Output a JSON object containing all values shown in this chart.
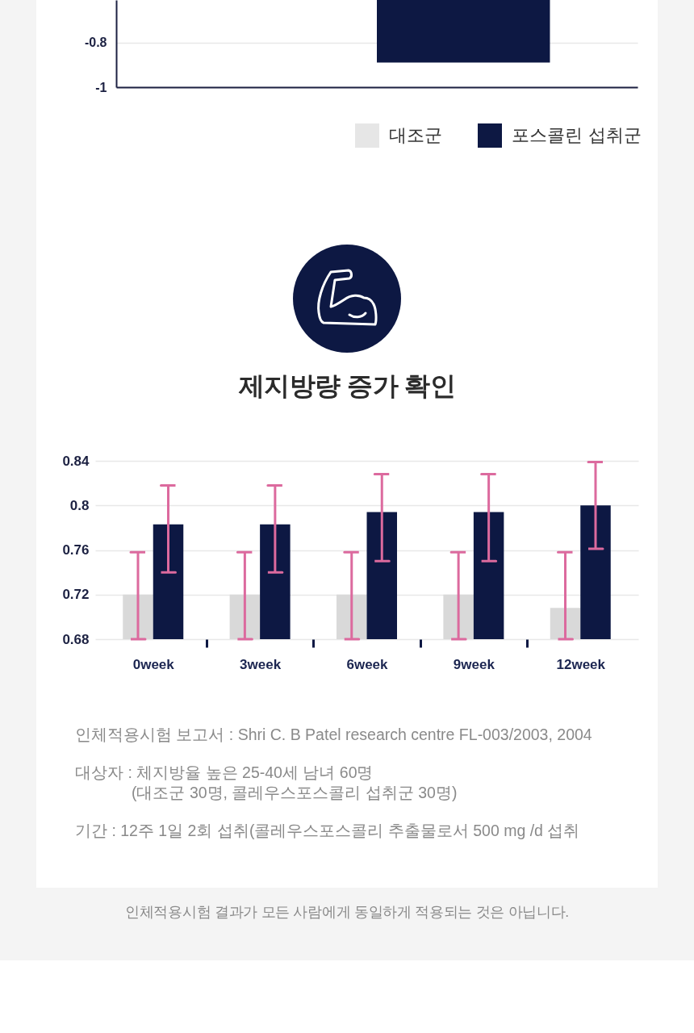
{
  "chart_data": [
    {
      "type": "bar",
      "categories": [
        null
      ],
      "series": [
        {
          "name": "대조군",
          "color": "#e6e6e6",
          "values": [
            null
          ]
        },
        {
          "name": "포스콜린 섭취군",
          "color": "#0d1843",
          "values": [
            -0.89
          ]
        }
      ],
      "ylim": [
        -1,
        -0.61
      ],
      "yticks": [
        -1,
        -0.8
      ],
      "grid": "y",
      "legend": "bottom right"
    },
    {
      "type": "bar",
      "title": "제지방량 증가 확인",
      "categories": [
        "0week",
        "3week",
        "6week",
        "9week",
        "12week"
      ],
      "series": [
        {
          "color": "#d9d9d9",
          "values": [
            0.72,
            0.72,
            0.72,
            0.72,
            0.708
          ],
          "errors": [
            [
              0.68,
              0.758
            ],
            [
              0.68,
              0.758
            ],
            [
              0.68,
              0.758
            ],
            [
              0.68,
              0.758
            ],
            [
              0.68,
              0.758
            ]
          ]
        },
        {
          "color": "#0d1843",
          "values": [
            0.783,
            0.783,
            0.794,
            0.794,
            0.8
          ],
          "errors": [
            [
              0.74,
              0.818
            ],
            [
              0.74,
              0.818
            ],
            [
              0.75,
              0.828
            ],
            [
              0.75,
              0.828
            ],
            [
              0.761,
              0.839
            ]
          ]
        }
      ],
      "ylim": [
        0.68,
        0.84
      ],
      "yticks": [
        0.68,
        0.72,
        0.76,
        0.8,
        0.84
      ],
      "grid": "y",
      "legend": false,
      "annotations": [
        "인체적용시험 보고서 : Shri C. B Patel research centre FL-003/2003, 2004",
        "대상자 : 체지방율 높은 25-40세 남녀 60명\n(대조군 30명, 콜레우스포스콜리 섭취군 30명)",
        "기간 : 12주 1일 2회 섭취(콜레우스포스콜리 추출물로서 500 mg /d 섭취",
        "인체적용시험 결과가 모든 사람에게 동일하게 적용되는 것은 아닙니다."
      ]
    }
  ]
}
